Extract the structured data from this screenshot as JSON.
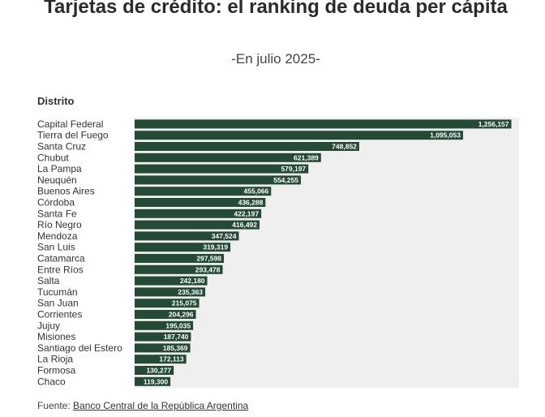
{
  "title": "Tarjetas de crédito: el ranking de deuda per cápita",
  "subtitle": "-En julio 2025-",
  "column_header": "Distrito",
  "source_label": "Fuente: ",
  "source_link": "Banco Central de la República Argentina",
  "colors": {
    "bar": "#244a36",
    "plot_bg": "#efefef",
    "label": "#ffffff"
  },
  "chart_data": {
    "type": "bar",
    "orientation": "horizontal",
    "categories": [
      "Capital Federal",
      "Tierra del Fuego",
      "Santa Cruz",
      "Chubut",
      "La Pampa",
      "Neuquén",
      "Buenos Aires",
      "Córdoba",
      "Santa Fe",
      "Río Negro",
      "Mendoza",
      "San Luis",
      "Catamarca",
      "Entre Ríos",
      "Salta",
      "Tucumán",
      "San Juan",
      "Corrientes",
      "Jujuy",
      "Misiones",
      "Santiago del Estero",
      "La Rioja",
      "Formosa",
      "Chaco"
    ],
    "values": [
      1256157,
      1095053,
      748852,
      621389,
      579197,
      554255,
      455066,
      436288,
      422197,
      416492,
      347524,
      319319,
      297598,
      293478,
      242180,
      235363,
      215075,
      204296,
      195035,
      187740,
      185369,
      172113,
      130277,
      119300
    ],
    "value_labels": [
      "1,256,157",
      "1,095,053",
      "748,852",
      "621,389",
      "579,197",
      "554,255",
      "455,066",
      "436,288",
      "422,197",
      "416,492",
      "347,524",
      "319,319",
      "297,598",
      "293,478",
      "242,180",
      "235,363",
      "215,075",
      "204,296",
      "195,035",
      "187,740",
      "185,369",
      "172,113",
      "130,277",
      "119,300"
    ],
    "xlim": [
      0,
      1300000
    ],
    "grid": false,
    "legend": "none"
  }
}
